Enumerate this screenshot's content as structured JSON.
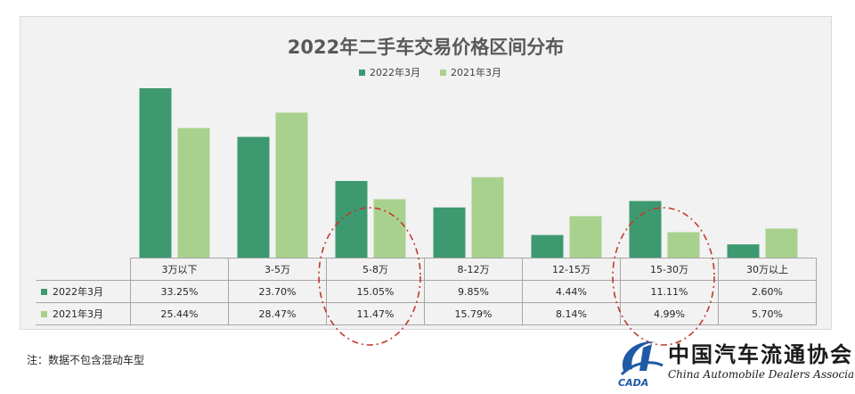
{
  "colors": {
    "s2022": "#3d9970",
    "s2021": "#a9d18e",
    "highlight": "#c0392b"
  },
  "chart_data": {
    "type": "bar",
    "title": "2022年二手车交易价格区间分布",
    "categories": [
      "3万以下",
      "3-5万",
      "5-8万",
      "8-12万",
      "12-15万",
      "15-30万",
      "30万以上"
    ],
    "series": [
      {
        "name": "2022年3月",
        "values": [
          33.25,
          23.7,
          15.05,
          9.85,
          4.44,
          11.11,
          2.6
        ],
        "labels": [
          "33.25%",
          "23.70%",
          "15.05%",
          "9.85%",
          "4.44%",
          "11.11%",
          "2.60%"
        ]
      },
      {
        "name": "2021年3月",
        "values": [
          25.44,
          28.47,
          11.47,
          15.79,
          8.14,
          4.99,
          5.7
        ],
        "labels": [
          "25.44%",
          "28.47%",
          "11.47%",
          "15.79%",
          "8.14%",
          "4.99%",
          "5.70%"
        ]
      }
    ],
    "ylim": [
      0,
      35
    ],
    "legend": "top-center",
    "grid": false,
    "highlighted_categories": [
      "5-8万",
      "15-30万"
    ]
  },
  "note": "注：数据不包含混动车型",
  "logo": {
    "cn": "中国汽车流通协会",
    "en": "China Automobile Dealers Association",
    "mark_text": "CADA"
  }
}
